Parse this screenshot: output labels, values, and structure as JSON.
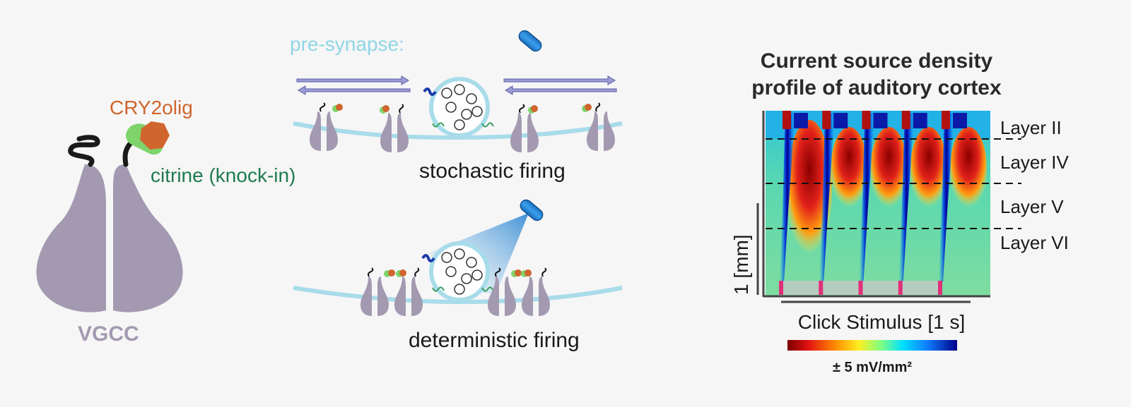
{
  "vgcc": {
    "protein_label": "VGCC",
    "cry2_label": "CRY2olig",
    "citrine_label": "citrine (knock-in)"
  },
  "synapse": {
    "presynapse_label": "pre-synapse:",
    "stochastic_label": "stochastic firing",
    "deterministic_label": "deterministic firing"
  },
  "csd": {
    "title_line1": "Current source density",
    "title_line2": "profile of auditory cortex",
    "layers": [
      "Layer II",
      "Layer IV",
      "Layer V",
      "Layer VI"
    ],
    "y_scale_label": "1 [mm]",
    "x_scale_label": "Click Stimulus [1 s]",
    "colorbar_label": "± 5 mV/mm²",
    "click_count": 5
  },
  "colors": {
    "vgcc": "#a39ab1",
    "cry2": "#d0652d",
    "citrine": "#7ed46a",
    "membrane": "#a8dcea",
    "presynapse_text": "#8fd6e6",
    "citrine_text": "#1f7a50",
    "cry2_text": "#d0652d",
    "optic_fiber": "#2a8ad6",
    "arrow": "#9c9cd6"
  }
}
